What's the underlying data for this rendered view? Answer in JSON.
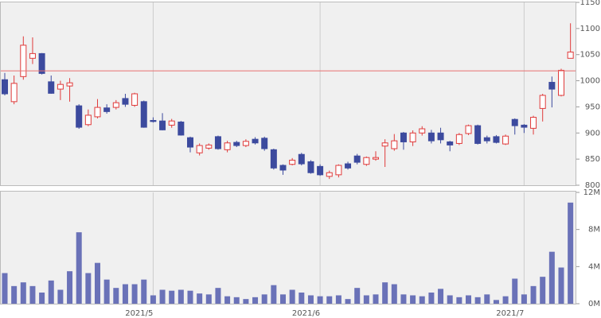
{
  "chart_data": [
    {
      "type": "candlestick",
      "open": [
        1002,
        960,
        1008,
        1043,
        1052,
        998,
        984,
        990,
        952,
        916,
        931,
        948,
        949,
        966,
        953,
        960,
        924,
        923,
        915,
        921,
        891,
        862,
        871,
        893,
        868,
        882,
        876,
        888,
        890,
        868,
        838,
        840,
        859,
        845,
        836,
        817,
        820,
        841,
        856,
        840,
        850,
        875,
        870,
        900,
        883,
        900,
        900,
        900,
        883,
        880,
        899,
        914,
        891,
        893,
        879,
        926,
        915,
        909,
        947,
        997,
        972,
        1043
      ],
      "high": [
        1015,
        1010,
        1085,
        1083,
        1053,
        1010,
        1000,
        1005,
        955,
        945,
        965,
        955,
        963,
        975,
        977,
        962,
        930,
        938,
        927,
        923,
        893,
        880,
        880,
        895,
        885,
        885,
        888,
        892,
        893,
        870,
        840,
        852,
        862,
        848,
        840,
        828,
        840,
        845,
        860,
        855,
        865,
        888,
        898,
        902,
        905,
        913,
        906,
        910,
        885,
        900,
        916,
        916,
        895,
        896,
        897,
        928,
        917,
        933,
        975,
        1008,
        1023,
        1110
      ],
      "low": [
        972,
        955,
        1002,
        1032,
        1012,
        975,
        963,
        960,
        908,
        913,
        928,
        937,
        945,
        950,
        950,
        910,
        920,
        905,
        910,
        895,
        863,
        857,
        868,
        868,
        863,
        873,
        873,
        878,
        866,
        830,
        820,
        838,
        838,
        822,
        818,
        812,
        815,
        830,
        840,
        837,
        847,
        835,
        866,
        868,
        875,
        895,
        880,
        880,
        865,
        877,
        896,
        878,
        880,
        880,
        877,
        897,
        900,
        897,
        922,
        949,
        970,
        1045
      ],
      "close": [
        975,
        995,
        1068,
        1052,
        1014,
        976,
        993,
        996,
        911,
        934,
        949,
        941,
        958,
        955,
        975,
        911,
        922,
        906,
        923,
        896,
        873,
        876,
        877,
        870,
        881,
        876,
        884,
        881,
        870,
        833,
        829,
        848,
        841,
        824,
        820,
        824,
        838,
        833,
        844,
        853,
        853,
        881,
        885,
        883,
        900,
        908,
        885,
        887,
        877,
        897,
        914,
        880,
        885,
        882,
        894,
        914,
        911,
        930,
        972,
        984,
        1020,
        1055
      ],
      "up_color": "#e03a3a",
      "down_color": "#3c4a9e",
      "reference_line": 1019,
      "reference_color": "#e87070",
      "ylim": [
        800,
        1150
      ],
      "yticks": [
        800,
        850,
        900,
        950,
        1000,
        1050,
        1100,
        1150
      ]
    },
    {
      "type": "bar",
      "categories": [
        null,
        null,
        null,
        null,
        null,
        null,
        null,
        null,
        null,
        null,
        null,
        null,
        null,
        null,
        null,
        null,
        "2021/5",
        null,
        null,
        null,
        null,
        null,
        null,
        null,
        null,
        null,
        null,
        null,
        null,
        null,
        null,
        null,
        null,
        null,
        "2021/6",
        null,
        null,
        null,
        null,
        null,
        null,
        null,
        null,
        null,
        null,
        null,
        null,
        null,
        null,
        null,
        null,
        null,
        null,
        null,
        null,
        null,
        "2021/7",
        null,
        null,
        null,
        null,
        null
      ],
      "values": [
        3300000,
        1900000,
        2300000,
        1900000,
        1200000,
        2500000,
        1500000,
        3500000,
        7700000,
        3300000,
        4400000,
        2600000,
        1700000,
        2100000,
        2100000,
        2600000,
        900000,
        1500000,
        1400000,
        1500000,
        1400000,
        1100000,
        1000000,
        1700000,
        800000,
        700000,
        500000,
        700000,
        1000000,
        2000000,
        1000000,
        1500000,
        1200000,
        900000,
        800000,
        800000,
        900000,
        500000,
        1700000,
        900000,
        1000000,
        2300000,
        2100000,
        1000000,
        900000,
        800000,
        1200000,
        1600000,
        900000,
        700000,
        900000,
        700000,
        1000000,
        400000,
        800000,
        2700000,
        1000000,
        1900000,
        2900000,
        5600000,
        3900000,
        10900000
      ],
      "color": "#6a72b8",
      "ylim": [
        0,
        12000000
      ],
      "yticks": [
        {
          "value": 0,
          "label": "0M"
        },
        {
          "value": 4000000,
          "label": "4M"
        },
        {
          "value": 8000000,
          "label": "8M"
        },
        {
          "value": 12000000,
          "label": "12M"
        }
      ]
    }
  ]
}
